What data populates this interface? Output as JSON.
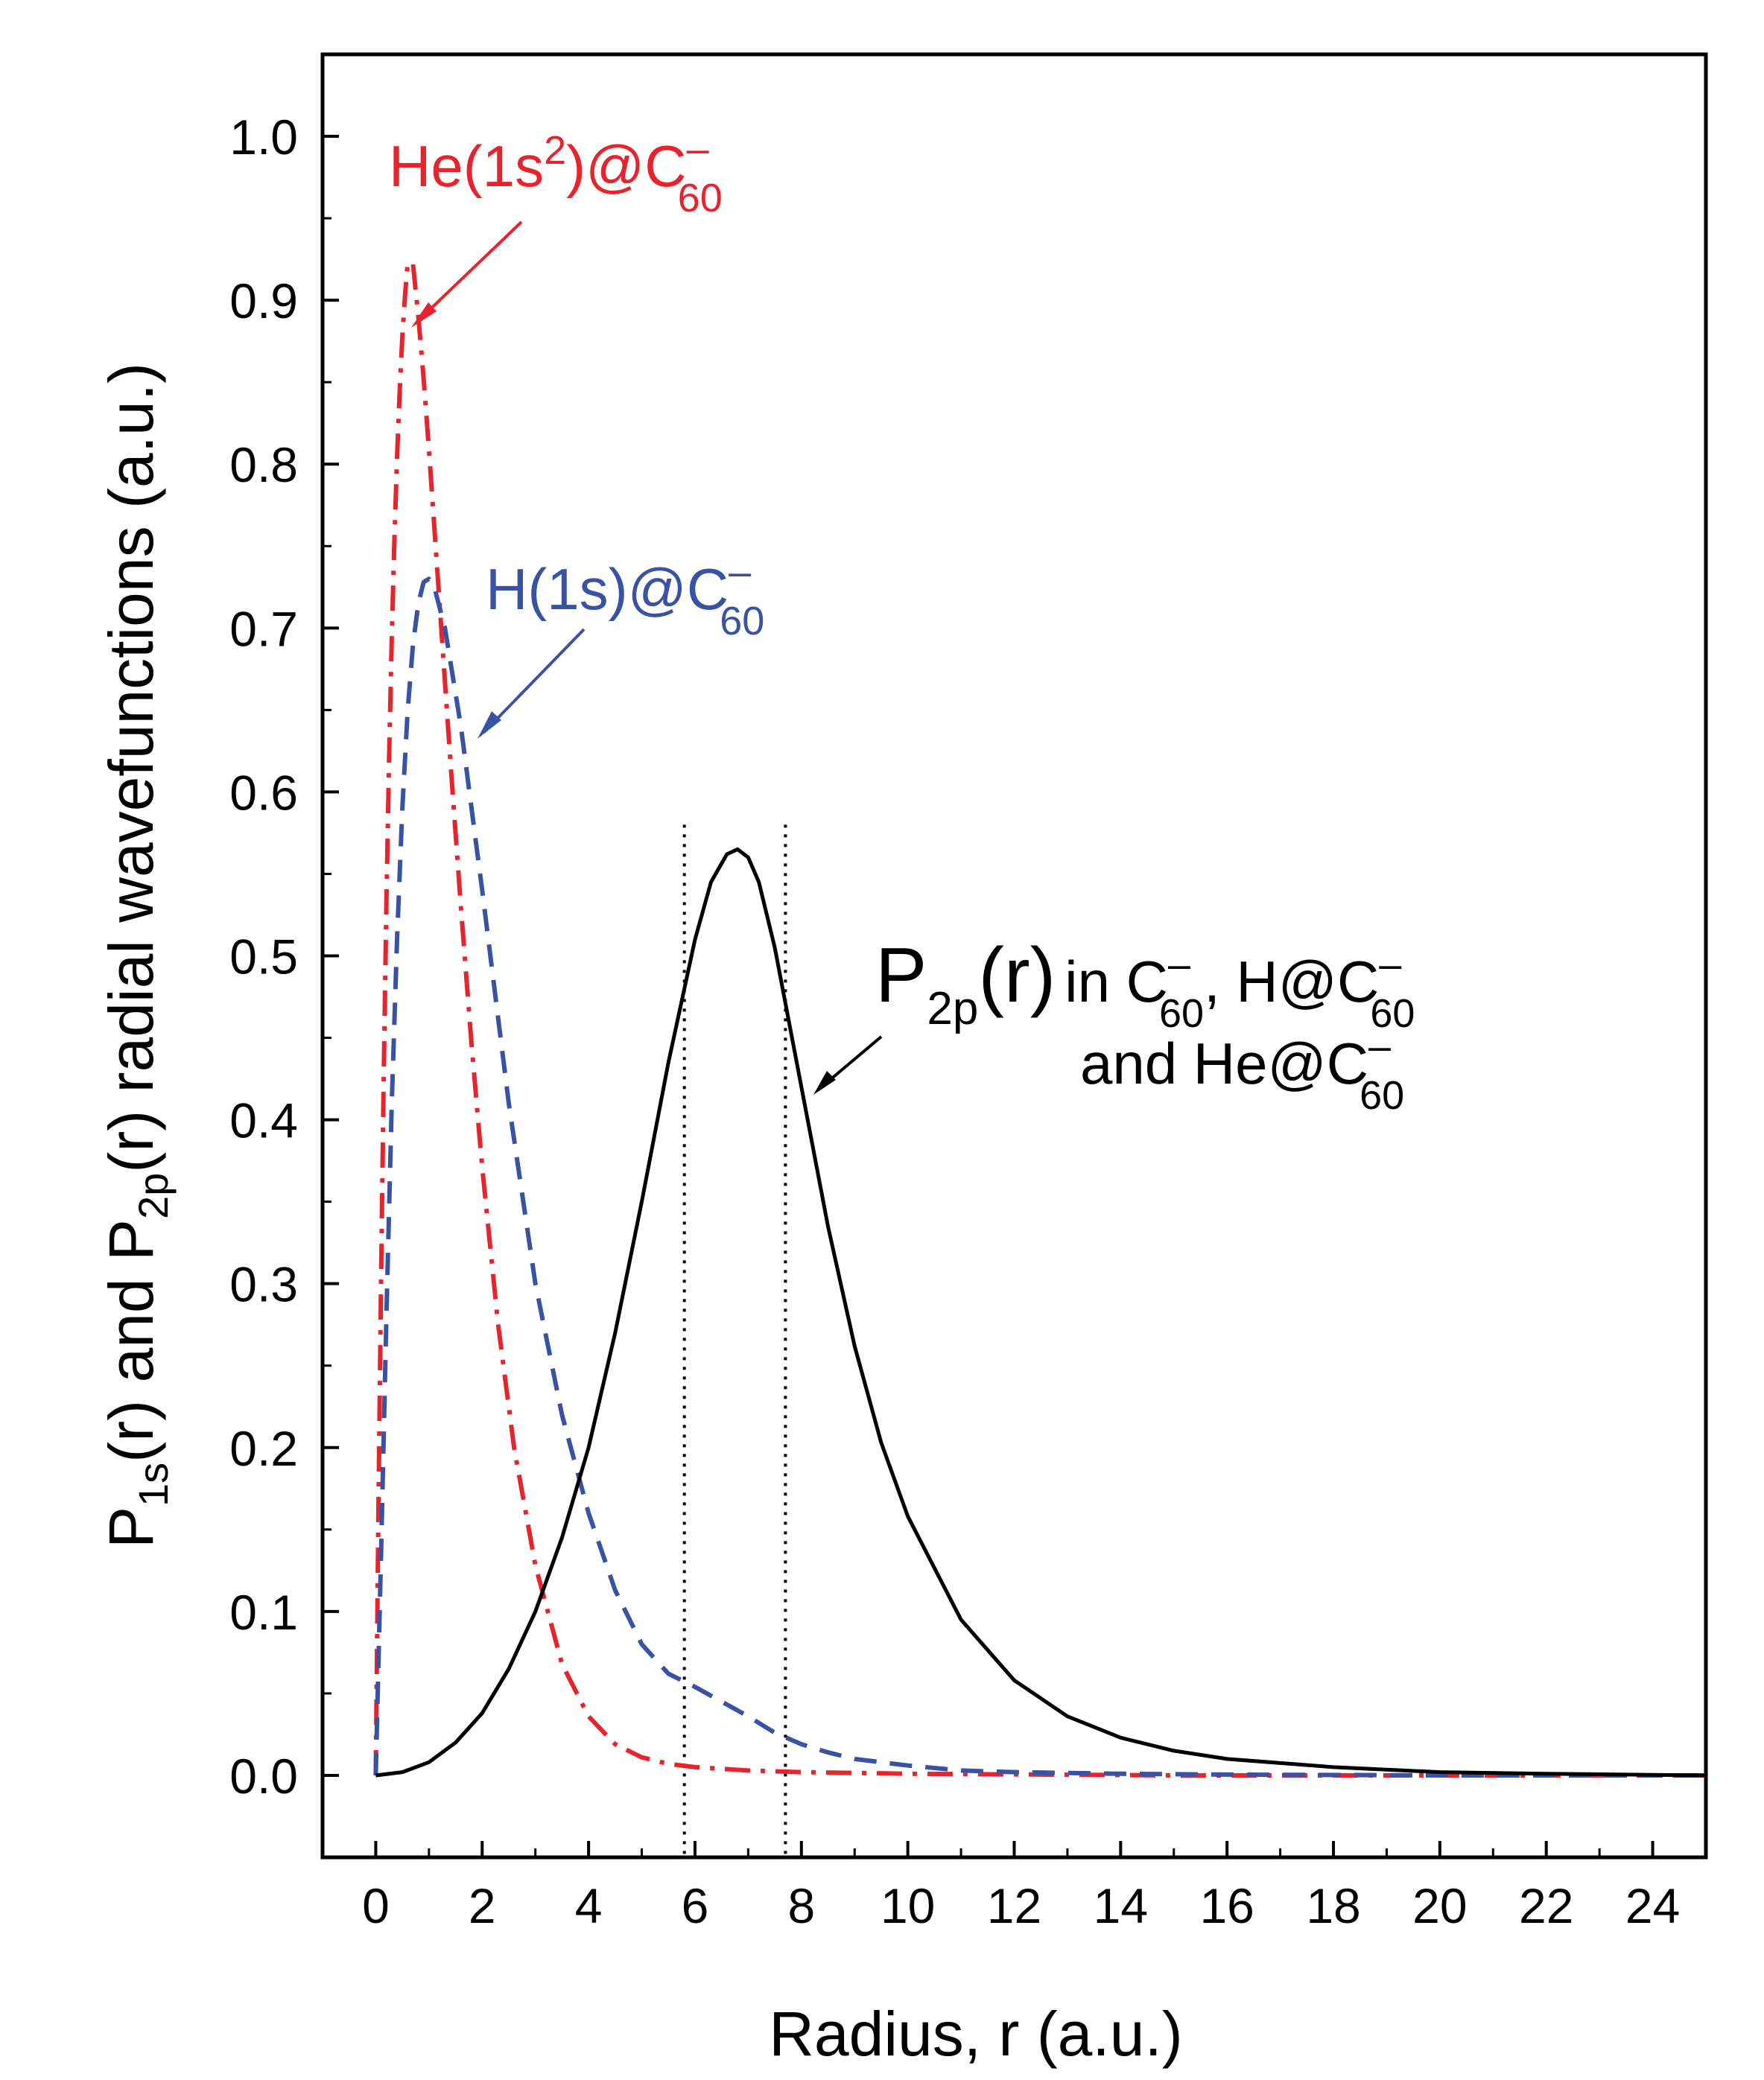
{
  "chart_data": {
    "type": "line",
    "x_ticks": [
      "0",
      "2",
      "4",
      "6",
      "8",
      "10",
      "12",
      "14",
      "16",
      "18",
      "20",
      "22",
      "24"
    ],
    "y_ticks": [
      "0.0",
      "0.1",
      "0.2",
      "0.3",
      "0.4",
      "0.5",
      "0.6",
      "0.7",
      "0.8",
      "0.9",
      "1.0"
    ],
    "xlim": [
      -1,
      25
    ],
    "ylim": [
      -0.05,
      1.05
    ],
    "xlabel": "Radius, r (a.u.)",
    "ylabel": {
      "p1": "P",
      "s1": "1s",
      "p2": "(r) and P",
      "s2": "2p",
      "p3": "(r) radial wavefunctions (a.u.)"
    },
    "vlines": [
      5.8,
      7.7
    ],
    "series": [
      {
        "name": "He(1s2)@C60-",
        "color": "#e8232b",
        "style": "dash-dot",
        "x": [
          0,
          0.05,
          0.1,
          0.15,
          0.2,
          0.25,
          0.3,
          0.35,
          0.4,
          0.45,
          0.5,
          0.55,
          0.6,
          0.7,
          0.8,
          0.9,
          1.0,
          1.2,
          1.4,
          1.6,
          1.8,
          2.0,
          2.3,
          2.6,
          3.0,
          3.5,
          4.0,
          4.5,
          5.0,
          5.5,
          6.0,
          7.0,
          8.0,
          10,
          15,
          25
        ],
        "y": [
          0,
          0.162,
          0.304,
          0.426,
          0.532,
          0.62,
          0.694,
          0.753,
          0.804,
          0.845,
          0.878,
          0.903,
          0.923,
          0.922,
          0.89,
          0.852,
          0.809,
          0.715,
          0.62,
          0.53,
          0.446,
          0.371,
          0.275,
          0.2,
          0.128,
          0.068,
          0.036,
          0.019,
          0.011,
          0.007,
          0.005,
          0.003,
          0.002,
          0.001,
          0.0,
          0.0
        ]
      },
      {
        "name": "H(1s)@C60-",
        "color": "#3a52a3",
        "style": "dash",
        "x": [
          0,
          0.1,
          0.2,
          0.3,
          0.4,
          0.5,
          0.6,
          0.7,
          0.8,
          0.9,
          1.0,
          1.1,
          1.3,
          1.6,
          2.0,
          2.5,
          3.0,
          3.5,
          4.0,
          4.5,
          5.0,
          5.5,
          6.0,
          6.5,
          7.0,
          7.5,
          8.0,
          8.5,
          9.0,
          10,
          11,
          12,
          14,
          16,
          20,
          25
        ],
        "y": [
          0,
          0.136,
          0.28,
          0.41,
          0.51,
          0.59,
          0.65,
          0.69,
          0.715,
          0.728,
          0.73,
          0.725,
          0.7,
          0.64,
          0.54,
          0.41,
          0.3,
          0.22,
          0.16,
          0.113,
          0.08,
          0.062,
          0.054,
          0.045,
          0.036,
          0.026,
          0.019,
          0.014,
          0.01,
          0.006,
          0.003,
          0.002,
          0.001,
          0.0005,
          0.0,
          0.0
        ]
      },
      {
        "name": "P2p(r) in C60-, H@C60- and He@C60-",
        "color": "#000000",
        "style": "solid",
        "x": [
          0,
          0.5,
          1.0,
          1.5,
          2.0,
          2.5,
          3.0,
          3.5,
          4.0,
          4.5,
          5.0,
          5.5,
          6.0,
          6.3,
          6.6,
          6.8,
          7.0,
          7.2,
          7.5,
          8.0,
          8.5,
          9.0,
          9.5,
          10,
          11,
          12,
          13,
          14,
          15,
          16,
          18,
          20,
          22,
          25
        ],
        "y": [
          0,
          0.002,
          0.008,
          0.02,
          0.038,
          0.065,
          0.1,
          0.145,
          0.2,
          0.27,
          0.35,
          0.435,
          0.51,
          0.545,
          0.562,
          0.565,
          0.56,
          0.545,
          0.505,
          0.42,
          0.335,
          0.262,
          0.203,
          0.158,
          0.095,
          0.058,
          0.036,
          0.023,
          0.015,
          0.01,
          0.005,
          0.002,
          0.001,
          0.0
        ]
      }
    ],
    "annotations": {
      "he": {
        "a": "He(1s",
        "sup": "2",
        "b": ")@C",
        "sup2": "–",
        "sub": "60"
      },
      "h": {
        "a": "H(1s)@C",
        "sup": "–",
        "sub": "60"
      },
      "p2p": {
        "big": "P",
        "big_sub": "2p",
        "big_r": "(r)",
        "l1a": "in C",
        "l1_sup": "–",
        "l1_sub": "60",
        "l1b": ", H@C",
        "l1_sup2": "–",
        "l1_sub2": "60",
        "l2a": "and He@C",
        "l2_sup": "–",
        "l2_sub": "60"
      }
    }
  }
}
